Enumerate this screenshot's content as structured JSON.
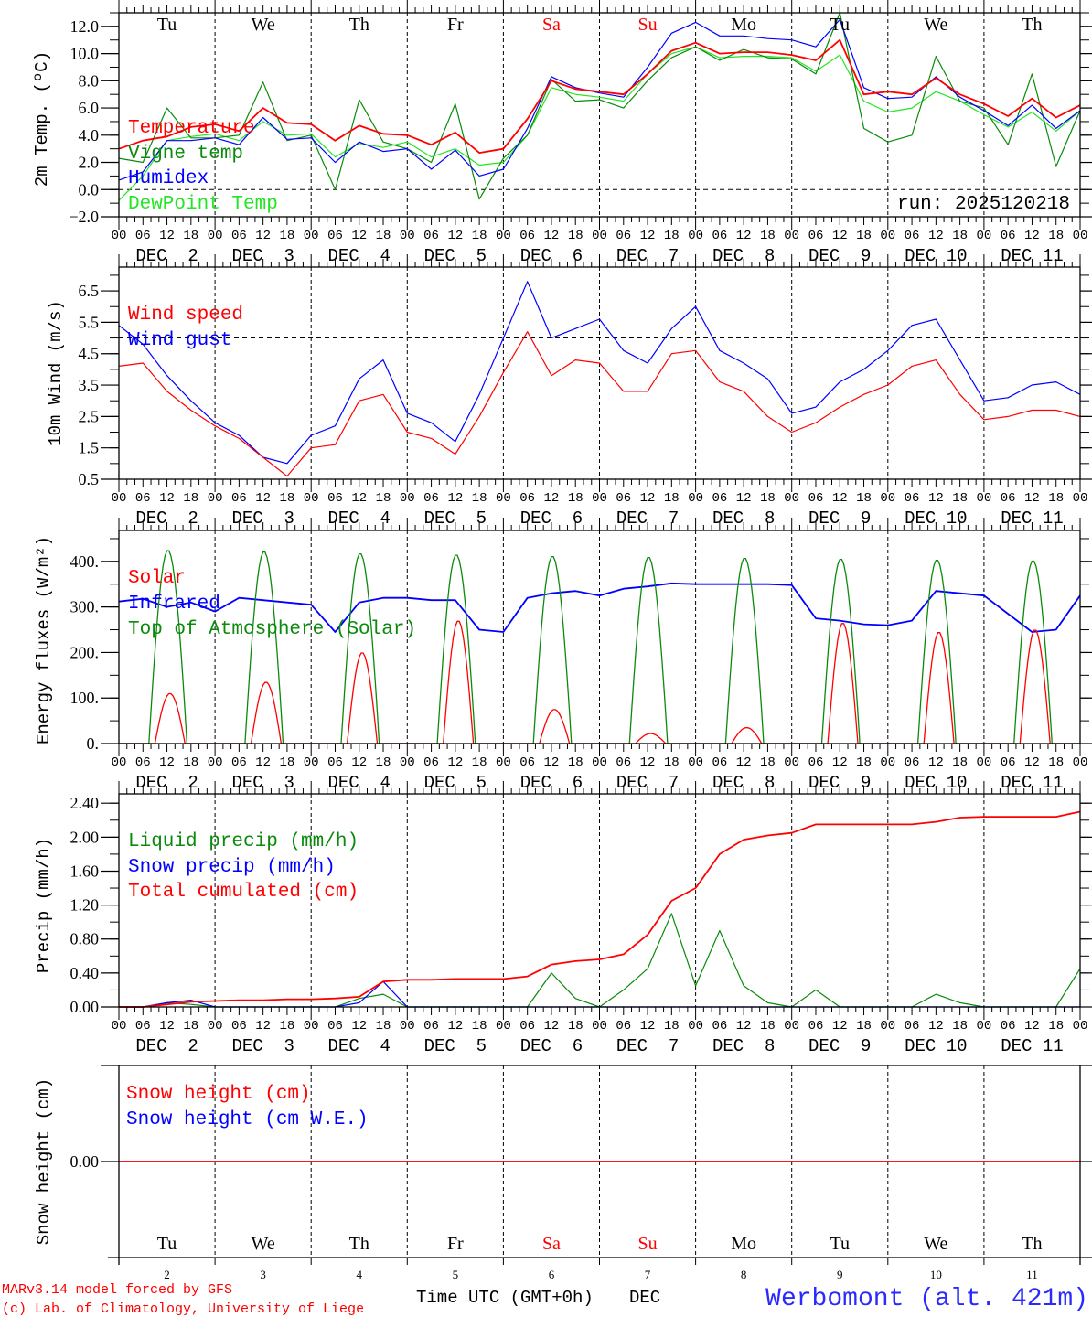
{
  "header": {
    "run_label": "run: 2025120218"
  },
  "footer": {
    "model": "MARv3.14 model forced by GFS",
    "credit": "(c) Lab. of Climatology, University of Liege",
    "time_axis": "Time UTC (GMT+0h)",
    "month": "DEC",
    "station": "Werbomont (alt. 421m)"
  },
  "colors": {
    "red": "#ff0000",
    "blue": "#0000ff",
    "dark_green": "#0a8a0a",
    "light_green": "#22e622",
    "station": "#2a2aff"
  },
  "days": [
    {
      "dow": "Tu",
      "date": "DEC  2",
      "num": "2",
      "weekend": false
    },
    {
      "dow": "We",
      "date": "DEC  3",
      "num": "3",
      "weekend": false
    },
    {
      "dow": "Th",
      "date": "DEC  4",
      "num": "4",
      "weekend": false
    },
    {
      "dow": "Fr",
      "date": "DEC  5",
      "num": "5",
      "weekend": false
    },
    {
      "dow": "Sa",
      "date": "DEC  6",
      "num": "6",
      "weekend": true
    },
    {
      "dow": "Su",
      "date": "DEC  7",
      "num": "7",
      "weekend": true
    },
    {
      "dow": "Mo",
      "date": "DEC  8",
      "num": "8",
      "weekend": false
    },
    {
      "dow": "Tu",
      "date": "DEC  9",
      "num": "9",
      "weekend": false
    },
    {
      "dow": "We",
      "date": "DEC 10",
      "num": "10",
      "weekend": false
    },
    {
      "dow": "Th",
      "date": "DEC 11",
      "num": "11",
      "weekend": false
    }
  ],
  "hour_labels": [
    "00",
    "06",
    "12",
    "18"
  ],
  "chart_data": [
    {
      "type": "line",
      "ylabel": "2m Temp. (ºC)",
      "ylim": [
        -2,
        13
      ],
      "yticks": [
        "-2.0",
        "0.0",
        "2.0",
        "4.0",
        "6.0",
        "8.0",
        "10.0",
        "12.0"
      ],
      "ytick_values": [
        -2,
        0,
        2,
        4,
        6,
        8,
        10,
        12
      ],
      "minor_step": 1,
      "ref_line": 0,
      "x_step_hours": 6,
      "legend": [
        {
          "name": "Temperature",
          "color": "#ff0000"
        },
        {
          "name": "Vigne temp",
          "color": "#0a8a0a"
        },
        {
          "name": "Humidex",
          "color": "#0000ff"
        },
        {
          "name": "DewPoint Temp",
          "color": "#22e622"
        }
      ],
      "series": [
        {
          "name": "DewPoint Temp",
          "values": [
            -0.8,
            1.0,
            3.6,
            3.9,
            4.1,
            3.6,
            5.0,
            4.0,
            4.1,
            2.4,
            3.4,
            3.1,
            3.5,
            2.4,
            3.0,
            1.8,
            2.0,
            4.0,
            7.5,
            7.0,
            6.8,
            6.5,
            8.5,
            10.0,
            10.5,
            9.7,
            9.8,
            9.8,
            9.7,
            8.7,
            9.9,
            6.5,
            5.7,
            6.0,
            7.2,
            6.5,
            5.5,
            4.6,
            5.7,
            4.3,
            5.8
          ]
        },
        {
          "name": "Vigne temp",
          "values": [
            2.3,
            2.0,
            6.0,
            3.8,
            3.8,
            4.0,
            7.9,
            3.6,
            4.0,
            0.0,
            6.6,
            3.5,
            3.0,
            2.0,
            6.3,
            -0.7,
            2.3,
            4.0,
            8.1,
            6.5,
            6.6,
            6.0,
            8.0,
            9.7,
            10.5,
            9.5,
            10.3,
            9.7,
            9.6,
            8.5,
            13.0,
            4.5,
            3.5,
            4.0,
            9.8,
            6.5,
            6.0,
            3.3,
            8.5,
            1.7,
            5.8
          ]
        },
        {
          "name": "Humidex",
          "values": [
            0.7,
            1.3,
            3.6,
            3.6,
            3.8,
            3.3,
            5.3,
            3.7,
            3.8,
            2.0,
            3.5,
            2.8,
            3.0,
            1.5,
            2.9,
            1.0,
            1.5,
            4.5,
            8.3,
            7.5,
            7.1,
            6.8,
            9.0,
            11.5,
            12.3,
            11.3,
            11.3,
            11.1,
            11.0,
            10.5,
            12.5,
            7.5,
            6.7,
            6.8,
            8.3,
            6.8,
            5.8,
            4.7,
            6.2,
            4.5,
            5.8
          ]
        },
        {
          "name": "Temperature",
          "values": [
            3.0,
            3.6,
            3.9,
            4.6,
            4.8,
            4.3,
            6.0,
            4.9,
            4.8,
            3.6,
            4.7,
            4.1,
            4.0,
            3.3,
            4.2,
            2.7,
            3.0,
            5.2,
            8.0,
            7.4,
            7.2,
            7.0,
            8.5,
            10.2,
            10.8,
            10.0,
            10.1,
            10.1,
            9.9,
            9.5,
            11.0,
            7.0,
            7.2,
            7.0,
            8.2,
            7.0,
            6.3,
            5.4,
            6.7,
            5.3,
            6.2
          ]
        }
      ]
    },
    {
      "type": "line",
      "ylabel": "10m Wind (m/s)",
      "ylim": [
        0.5,
        7.26
      ],
      "yticks": [
        "0.5",
        "1.5",
        "2.5",
        "3.5",
        "4.5",
        "5.5",
        "6.5"
      ],
      "ytick_values": [
        0.5,
        1.5,
        2.5,
        3.5,
        4.5,
        5.5,
        6.5
      ],
      "minor_step": 0.5,
      "ref_line": 5,
      "x_step_hours": 6,
      "legend": [
        {
          "name": "Wind speed",
          "color": "#ff0000"
        },
        {
          "name": "Wind gust",
          "color": "#0000ff"
        }
      ],
      "series": [
        {
          "name": "Wind gust",
          "values": [
            5.4,
            4.8,
            3.8,
            3.0,
            2.3,
            1.9,
            1.2,
            1.0,
            1.9,
            2.2,
            3.7,
            4.3,
            2.6,
            2.3,
            1.7,
            3.2,
            5.0,
            6.8,
            5.0,
            5.3,
            5.6,
            4.6,
            4.2,
            5.3,
            6.0,
            4.6,
            4.2,
            3.7,
            2.6,
            2.8,
            3.6,
            4.0,
            4.6,
            5.4,
            5.6,
            4.3,
            3.0,
            3.1,
            3.5,
            3.6,
            3.2
          ]
        },
        {
          "name": "Wind speed",
          "values": [
            4.1,
            4.2,
            3.3,
            2.7,
            2.2,
            1.8,
            1.2,
            0.6,
            1.5,
            1.6,
            3.0,
            3.2,
            2.0,
            1.8,
            1.3,
            2.5,
            3.9,
            5.2,
            3.8,
            4.3,
            4.2,
            3.3,
            3.3,
            4.5,
            4.6,
            3.6,
            3.3,
            2.5,
            2.0,
            2.3,
            2.8,
            3.2,
            3.5,
            4.1,
            4.3,
            3.2,
            2.4,
            2.5,
            2.7,
            2.7,
            2.5
          ]
        }
      ]
    },
    {
      "type": "line",
      "ylabel": "Energy fluxes (W/m²)",
      "ylim": [
        0,
        468
      ],
      "yticks": [
        "0.",
        "100.",
        "200.",
        "300.",
        "400."
      ],
      "ytick_values": [
        0,
        100,
        200,
        300,
        400
      ],
      "minor_step": 50,
      "x_step_hours": 6,
      "legend": [
        {
          "name": "Solar",
          "color": "#ff0000"
        },
        {
          "name": "Infrared",
          "color": "#0000ff"
        },
        {
          "name": "Top of Atmosphere (Solar)",
          "color": "#0a8a0a"
        }
      ],
      "daily_peaks": {
        "Top of Atmosphere (Solar)": [
          425,
          422,
          418,
          415,
          412,
          410,
          408,
          406,
          404,
          402
        ],
        "Solar": [
          110,
          135,
          200,
          270,
          75,
          22,
          35,
          265,
          245,
          250
        ]
      },
      "series": [
        {
          "name": "Infrared",
          "values": [
            312,
            318,
            300,
            310,
            290,
            320,
            315,
            310,
            305,
            245,
            310,
            320,
            320,
            315,
            315,
            250,
            245,
            320,
            330,
            335,
            325,
            340,
            345,
            352,
            350,
            350,
            350,
            350,
            348,
            275,
            270,
            262,
            260,
            270,
            335,
            330,
            325,
            285,
            245,
            250,
            325
          ]
        }
      ]
    },
    {
      "type": "line",
      "ylabel": "Precip (mm/h)",
      "ylim": [
        0,
        2.51
      ],
      "yticks": [
        "0.00",
        "0.40",
        "0.80",
        "1.20",
        "1.60",
        "2.00",
        "2.40"
      ],
      "ytick_values": [
        0,
        0.4,
        0.8,
        1.2,
        1.6,
        2.0,
        2.4
      ],
      "minor_step": 0.2,
      "x_step_hours": 6,
      "legend": [
        {
          "name": "Liquid precip (mm/h)",
          "color": "#0a8a0a"
        },
        {
          "name": "Snow precip (mm/h)",
          "color": "#0000ff"
        },
        {
          "name": "Total cumulated (cm)",
          "color": "#ff0000"
        }
      ],
      "series": [
        {
          "name": "Liquid precip (mm/h)",
          "values": [
            0,
            0,
            0.05,
            0.03,
            0,
            0,
            0,
            0,
            0,
            0,
            0.1,
            0.15,
            0,
            0,
            0,
            0,
            0,
            0,
            0.4,
            0.1,
            0,
            0.2,
            0.45,
            1.1,
            0.25,
            0.9,
            0.25,
            0.05,
            0,
            0.2,
            0,
            0,
            0,
            0,
            0.15,
            0.05,
            0,
            0,
            0,
            0,
            0.45
          ]
        },
        {
          "name": "Snow precip (mm/h)",
          "values": [
            0,
            0,
            0.05,
            0.08,
            0,
            0,
            0,
            0,
            0,
            0,
            0.05,
            0.3,
            0,
            0,
            0,
            0,
            0,
            0,
            0,
            0,
            0,
            0,
            0,
            0,
            0,
            0,
            0,
            0,
            0,
            0,
            0,
            0,
            0,
            0,
            0,
            0,
            0,
            0,
            0,
            0,
            0
          ]
        },
        {
          "name": "Total cumulated (cm)",
          "values": [
            0,
            0,
            0.03,
            0.06,
            0.07,
            0.08,
            0.08,
            0.09,
            0.09,
            0.1,
            0.12,
            0.3,
            0.32,
            0.32,
            0.33,
            0.33,
            0.33,
            0.36,
            0.5,
            0.54,
            0.56,
            0.62,
            0.85,
            1.25,
            1.4,
            1.8,
            1.97,
            2.02,
            2.05,
            2.15,
            2.15,
            2.15,
            2.15,
            2.15,
            2.18,
            2.23,
            2.24,
            2.24,
            2.24,
            2.24,
            2.3
          ]
        }
      ]
    },
    {
      "type": "line",
      "ylabel": "Snow height (cm)",
      "ylim": [
        -1,
        1
      ],
      "yticks": [
        "0.00"
      ],
      "ytick_values": [
        0
      ],
      "x_step_hours": 6,
      "legend": [
        {
          "name": "Snow height (cm)",
          "color": "#ff0000"
        },
        {
          "name": "Snow height (cm W.E.)",
          "color": "#0000ff"
        }
      ],
      "series": [
        {
          "name": "Snow height (cm W.E.)",
          "values": [
            0,
            0,
            0,
            0,
            0,
            0,
            0,
            0,
            0,
            0,
            0,
            0,
            0,
            0,
            0,
            0,
            0,
            0,
            0,
            0,
            0,
            0,
            0,
            0,
            0,
            0,
            0,
            0,
            0,
            0,
            0,
            0,
            0,
            0,
            0,
            0,
            0,
            0,
            0,
            0,
            0
          ]
        },
        {
          "name": "Snow height (cm)",
          "values": [
            0,
            0,
            0,
            0,
            0,
            0,
            0,
            0,
            0,
            0,
            0,
            0,
            0,
            0,
            0,
            0,
            0,
            0,
            0,
            0,
            0,
            0,
            0,
            0,
            0,
            0,
            0,
            0,
            0,
            0,
            0,
            0,
            0,
            0,
            0,
            0,
            0,
            0,
            0,
            0,
            0
          ]
        }
      ]
    }
  ]
}
